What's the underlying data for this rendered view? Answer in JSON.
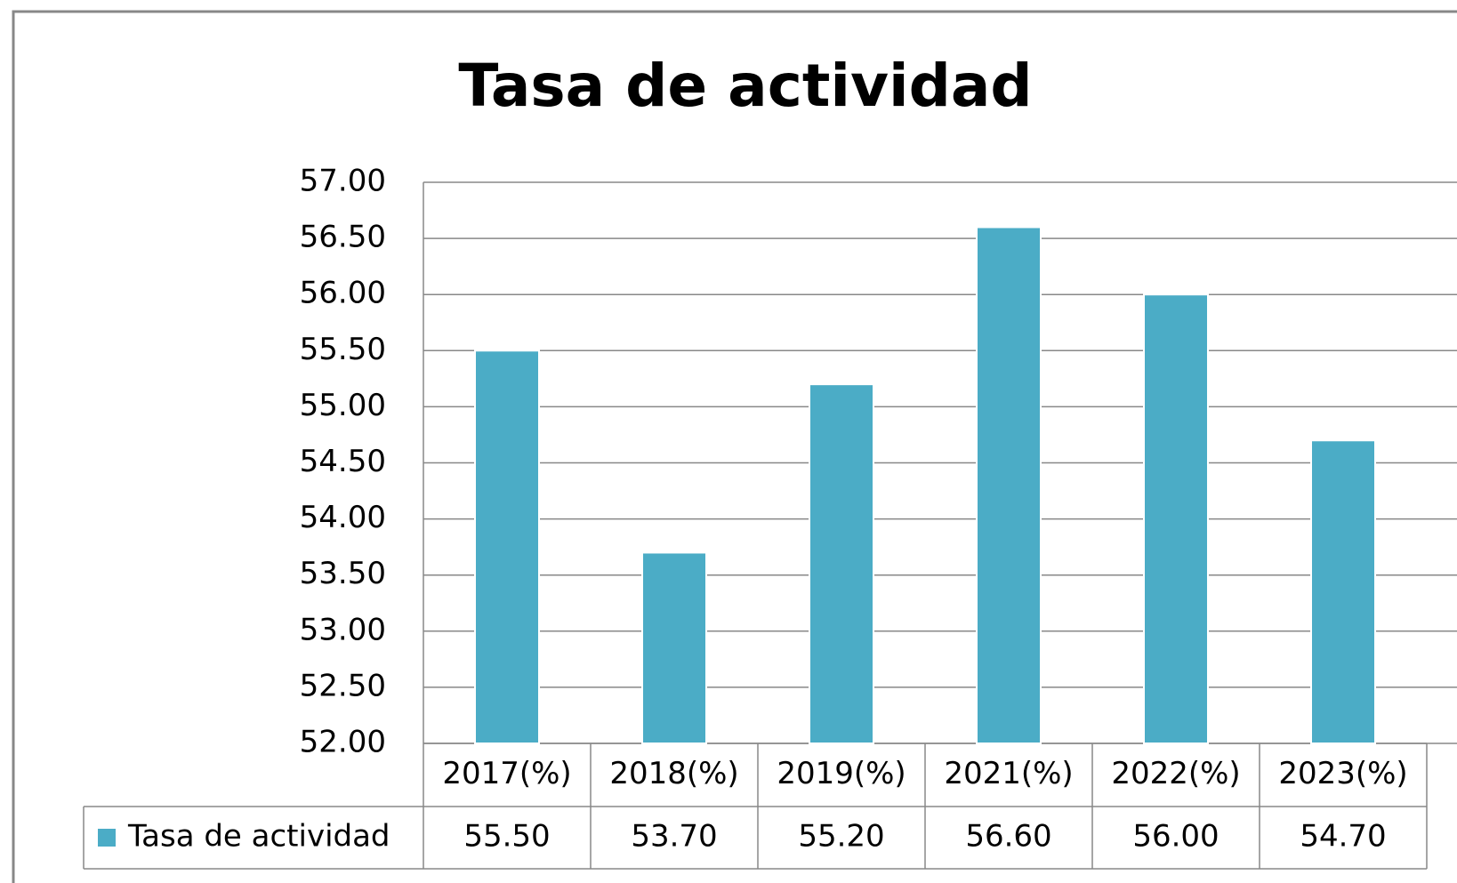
{
  "chart_data": {
    "type": "bar",
    "title": "Tasa de actividad",
    "categories": [
      "2017(%)",
      "2018(%)",
      "2019(%)",
      "2021(%)",
      "2022(%)",
      "2023(%)"
    ],
    "series": [
      {
        "name": "Tasa de actividad",
        "color": "#4bacc6",
        "values": [
          55.5,
          53.7,
          55.2,
          56.6,
          56.0,
          54.7
        ],
        "value_labels": [
          "55.50",
          "53.70",
          "55.20",
          "56.60",
          "56.00",
          "54.70"
        ]
      }
    ],
    "ylim": [
      52,
      57
    ],
    "yticks": [
      {
        "value": 52,
        "label": "52.00"
      },
      {
        "value": 52.5,
        "label": "52.50"
      },
      {
        "value": 53,
        "label": "53.00"
      },
      {
        "value": 53.5,
        "label": "53.50"
      },
      {
        "value": 54,
        "label": "54.00"
      },
      {
        "value": 54.5,
        "label": "54.50"
      },
      {
        "value": 55,
        "label": "55.00"
      },
      {
        "value": 55.5,
        "label": "55.50"
      },
      {
        "value": 56,
        "label": "56.00"
      },
      {
        "value": 56.5,
        "label": "56.50"
      },
      {
        "value": 57,
        "label": "57.00"
      }
    ],
    "grid": true,
    "legend": "table"
  }
}
